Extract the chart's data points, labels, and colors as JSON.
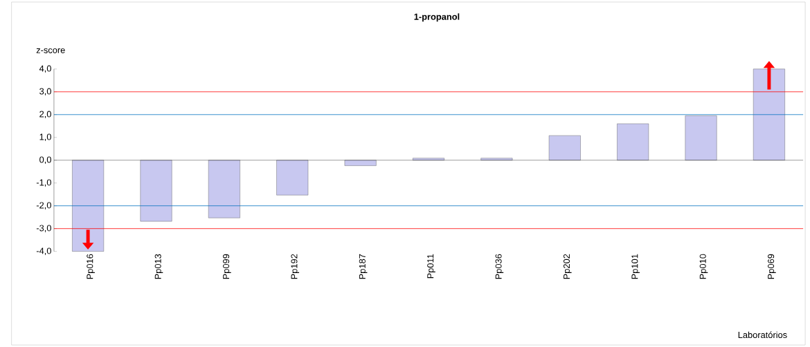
{
  "chart_data": {
    "type": "bar",
    "title": "1-propanol",
    "ylabel": "z-score",
    "annotations": [
      "Laboratórios"
    ],
    "categories": [
      "Pp016",
      "Pp013",
      "Pp099",
      "Pp192",
      "Pp187",
      "Pp011",
      "Pp036",
      "Pp202",
      "Pp101",
      "Pp010",
      "Pp069"
    ],
    "values": [
      -4.0,
      -2.68,
      -2.53,
      -1.53,
      -0.24,
      0.09,
      0.09,
      1.08,
      1.6,
      1.95,
      4.0
    ],
    "color": "#c8c8f0",
    "ylim": [
      -4,
      4
    ],
    "yticks": [
      {
        "value": -4,
        "label": "-4,0"
      },
      {
        "value": -3,
        "label": "-3,0"
      },
      {
        "value": -2,
        "label": "-2,0"
      },
      {
        "value": -1,
        "label": "-1,0"
      },
      {
        "value": 0,
        "label": "0,0"
      },
      {
        "value": 1,
        "label": "1,0"
      },
      {
        "value": 2,
        "label": "2,0"
      },
      {
        "value": 3,
        "label": "3,0"
      },
      {
        "value": 4,
        "label": "4,0"
      }
    ],
    "ref_lines": [
      {
        "axis": "y",
        "value": 3,
        "color": "#ff0000"
      },
      {
        "axis": "y",
        "value": -3,
        "color": "#ff0000"
      },
      {
        "axis": "y",
        "value": 2,
        "color": "#0070c0"
      },
      {
        "axis": "y",
        "value": -2,
        "color": "#0070c0"
      }
    ]
  }
}
